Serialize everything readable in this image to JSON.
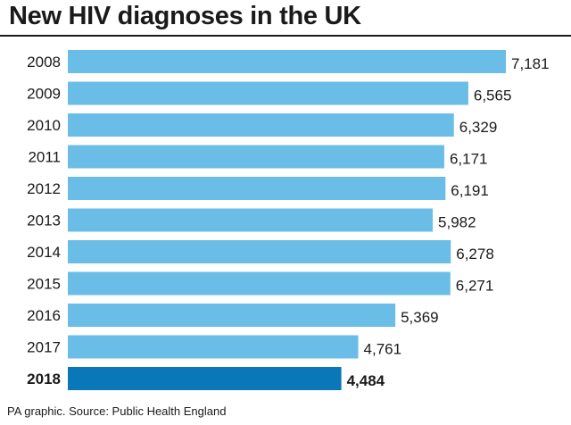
{
  "title": "New HIV diagnoses in the UK",
  "source": "PA graphic. Source: Public Health England",
  "colors": {
    "bar": "#6abde6",
    "highlight": "#0a77b8",
    "text": "#1a1a1a"
  },
  "chart_data": {
    "type": "bar",
    "orientation": "horizontal",
    "title": "New HIV diagnoses in the UK",
    "categories": [
      "2008",
      "2009",
      "2010",
      "2011",
      "2012",
      "2013",
      "2014",
      "2015",
      "2016",
      "2017",
      "2018"
    ],
    "values": [
      7181,
      6565,
      6329,
      6171,
      6191,
      5982,
      6278,
      6271,
      5369,
      4761,
      4484
    ],
    "value_labels": [
      "7,181",
      "6,565",
      "6,329",
      "6,171",
      "6,191",
      "5,982",
      "6,278",
      "6,271",
      "5,369",
      "4,761",
      "4,484"
    ],
    "highlight": "2018",
    "xlim": [
      0,
      7181
    ],
    "grid": false,
    "xlabel": "",
    "ylabel": ""
  }
}
